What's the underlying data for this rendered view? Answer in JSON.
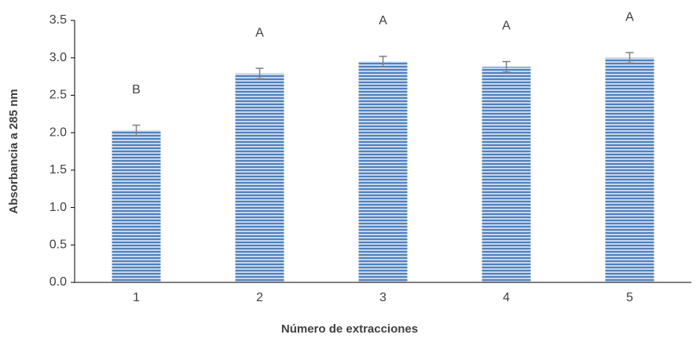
{
  "chart_data": {
    "type": "bar",
    "x_label": "Número de extracciones",
    "y_label": "Absorbancia a 285 nm",
    "categories": [
      "1",
      "2",
      "3",
      "4",
      "5"
    ],
    "values": [
      2.03,
      2.79,
      2.95,
      2.88,
      3.0
    ],
    "errors": [
      0.07,
      0.07,
      0.07,
      0.07,
      0.07
    ],
    "annotations": [
      "B",
      "A",
      "A",
      "A",
      "A"
    ],
    "color": "#4f81bd",
    "ylim": [
      0,
      3.5
    ],
    "yticks": [
      {
        "value": 0,
        "label": "0.0"
      },
      0.5,
      {
        "value": 1,
        "label": "1.0"
      },
      1.5,
      {
        "value": 2,
        "label": "2.0"
      },
      2.5,
      {
        "value": 3,
        "label": "3.0"
      },
      3.5
    ]
  }
}
